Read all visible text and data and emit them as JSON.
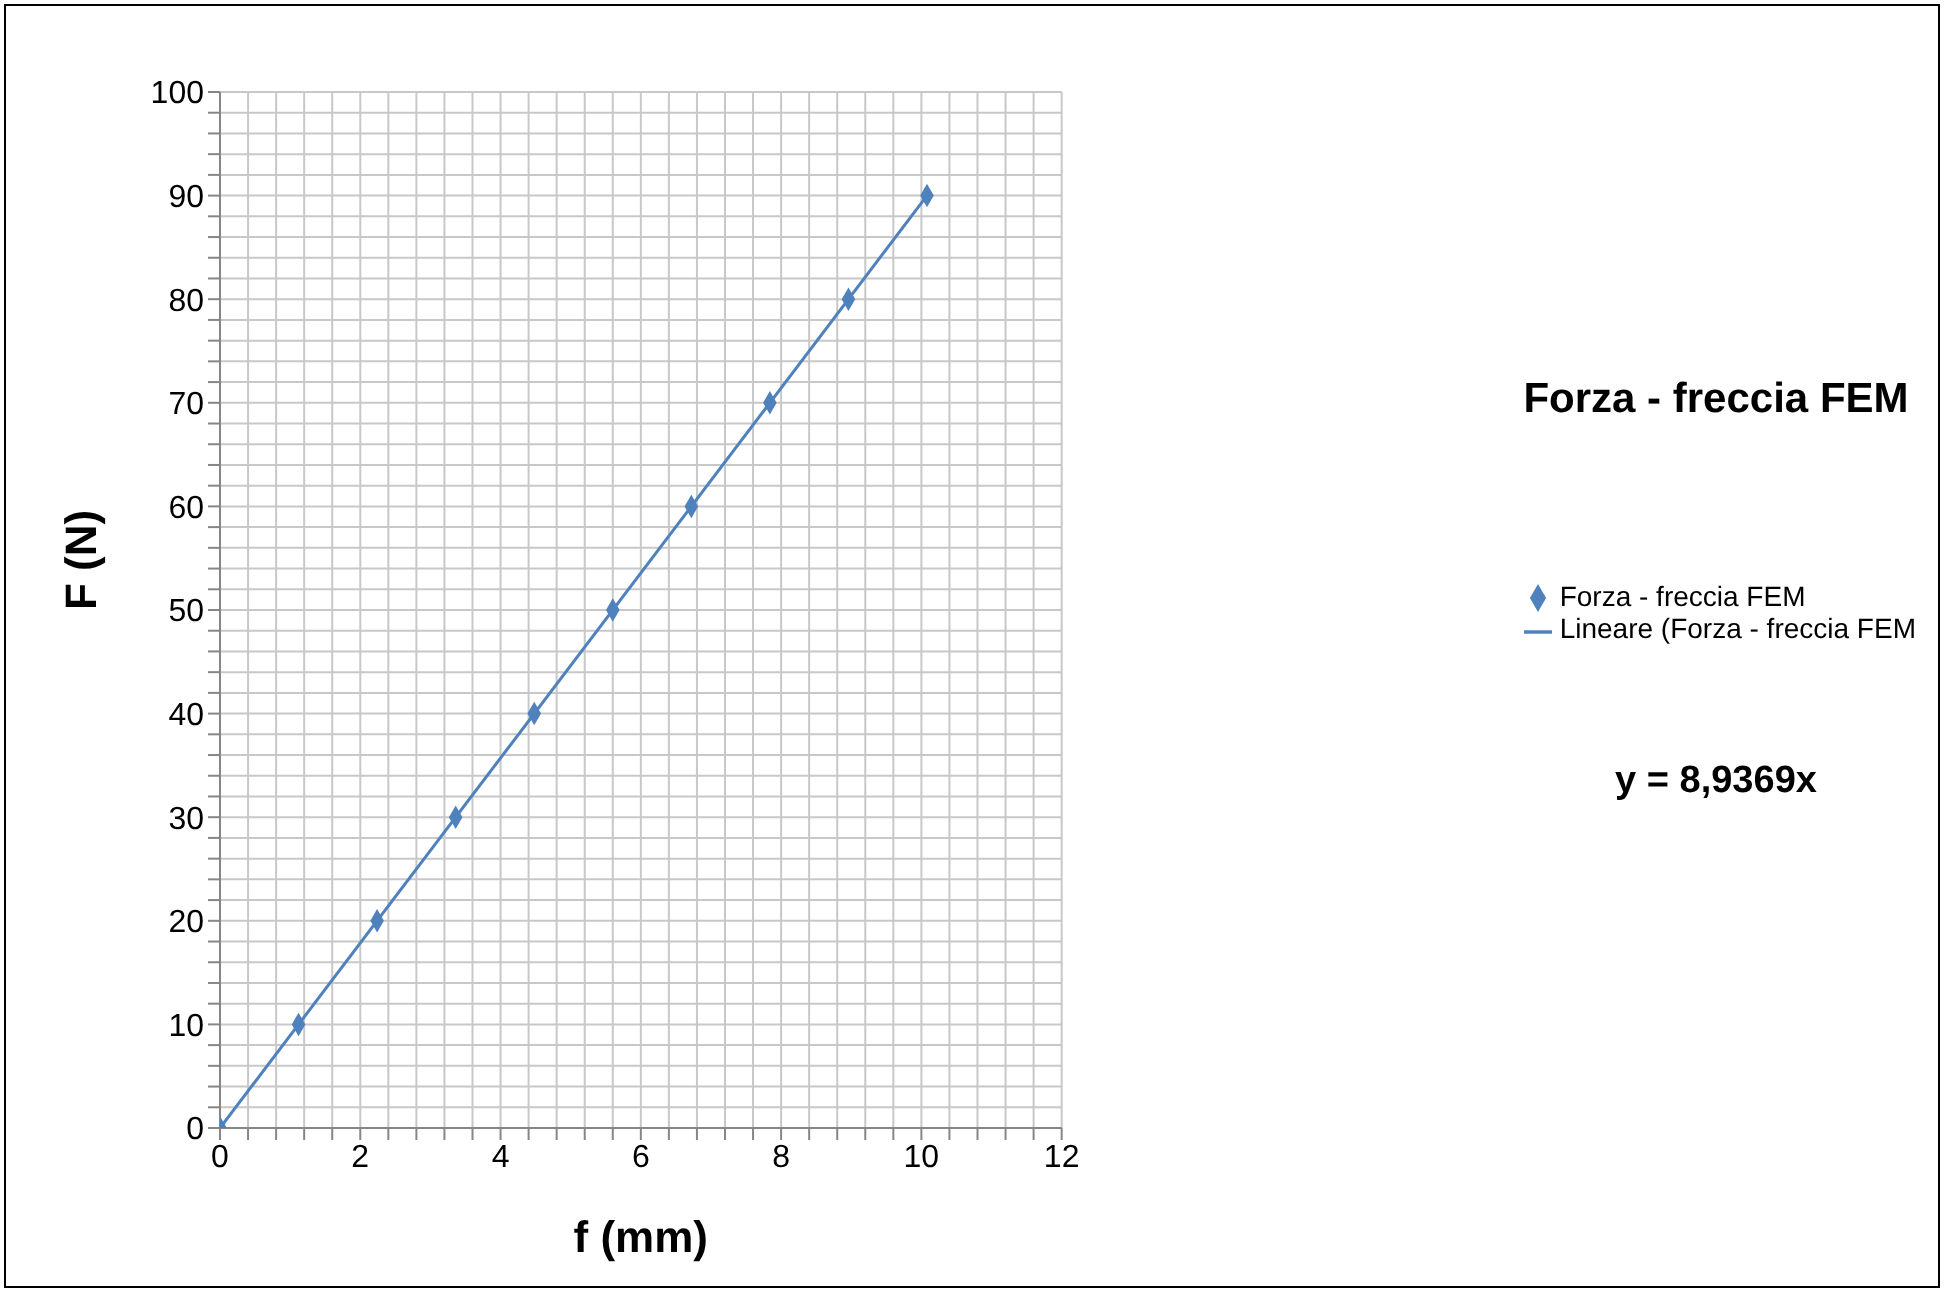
{
  "chart_data": {
    "type": "scatter",
    "title": "Forza - freccia FEM",
    "xlabel": "f (mm)",
    "ylabel": "F (N)",
    "series": [
      {
        "name": "Forza - freccia FEM",
        "color": "#4f81bd",
        "marker": "diamond",
        "x": [
          0,
          1.12,
          2.24,
          3.36,
          4.48,
          5.6,
          6.72,
          7.84,
          8.96,
          10.08
        ],
        "values": [
          0,
          10,
          20,
          30,
          40,
          50,
          60,
          70,
          80,
          90
        ]
      },
      {
        "name": "Lineare (Forza - freccia FEM",
        "type": "line",
        "color": "#4f81bd",
        "marker": "none",
        "x": [
          0,
          10.08
        ],
        "values": [
          0,
          90
        ]
      }
    ],
    "xlim": [
      0,
      12
    ],
    "ylim": [
      0,
      100
    ],
    "xticks": [
      0,
      {
        "value": 0.4,
        "label": null
      },
      {
        "value": 0.8,
        "label": null
      },
      {
        "value": 1.2,
        "label": null
      },
      {
        "value": 1.6,
        "label": null
      },
      2,
      {
        "value": 2.4,
        "label": null
      },
      {
        "value": 2.8,
        "label": null
      },
      {
        "value": 3.2,
        "label": null
      },
      {
        "value": 3.6,
        "label": null
      },
      4,
      {
        "value": 4.4,
        "label": null
      },
      {
        "value": 4.8,
        "label": null
      },
      {
        "value": 5.2,
        "label": null
      },
      {
        "value": 5.6,
        "label": null
      },
      6,
      {
        "value": 6.4,
        "label": null
      },
      {
        "value": 6.8,
        "label": null
      },
      {
        "value": 7.2,
        "label": null
      },
      {
        "value": 7.6,
        "label": null
      },
      8,
      {
        "value": 8.4,
        "label": null
      },
      {
        "value": 8.8,
        "label": null
      },
      {
        "value": 9.2,
        "label": null
      },
      {
        "value": 9.6,
        "label": null
      },
      10,
      {
        "value": 10.4,
        "label": null
      },
      {
        "value": 10.8,
        "label": null
      },
      {
        "value": 11.2,
        "label": null
      },
      {
        "value": 11.6,
        "label": null
      },
      12
    ],
    "yticks": [
      0,
      {
        "value": 2,
        "label": null
      },
      {
        "value": 4,
        "label": null
      },
      {
        "value": 6,
        "label": null
      },
      {
        "value": 8,
        "label": null
      },
      10,
      {
        "value": 12,
        "label": null
      },
      {
        "value": 14,
        "label": null
      },
      {
        "value": 16,
        "label": null
      },
      {
        "value": 18,
        "label": null
      },
      20,
      {
        "value": 22,
        "label": null
      },
      {
        "value": 24,
        "label": null
      },
      {
        "value": 26,
        "label": null
      },
      {
        "value": 28,
        "label": null
      },
      30,
      {
        "value": 32,
        "label": null
      },
      {
        "value": 34,
        "label": null
      },
      {
        "value": 36,
        "label": null
      },
      {
        "value": 38,
        "label": null
      },
      40,
      {
        "value": 42,
        "label": null
      },
      {
        "value": 44,
        "label": null
      },
      {
        "value": 46,
        "label": null
      },
      {
        "value": 48,
        "label": null
      },
      50,
      {
        "value": 52,
        "label": null
      },
      {
        "value": 54,
        "label": null
      },
      {
        "value": 56,
        "label": null
      },
      {
        "value": 58,
        "label": null
      },
      60,
      {
        "value": 62,
        "label": null
      },
      {
        "value": 64,
        "label": null
      },
      {
        "value": 66,
        "label": null
      },
      {
        "value": 68,
        "label": null
      },
      70,
      {
        "value": 72,
        "label": null
      },
      {
        "value": 74,
        "label": null
      },
      {
        "value": 76,
        "label": null
      },
      {
        "value": 78,
        "label": null
      },
      80,
      {
        "value": 82,
        "label": null
      },
      {
        "value": 84,
        "label": null
      },
      {
        "value": 86,
        "label": null
      },
      {
        "value": 88,
        "label": null
      },
      90,
      {
        "value": 92,
        "label": null
      },
      {
        "value": 94,
        "label": null
      },
      {
        "value": 96,
        "label": null
      },
      {
        "value": 98,
        "label": null
      },
      100
    ],
    "grid": true,
    "legend": "right",
    "annotations": [
      "y = 8,9369x"
    ]
  }
}
